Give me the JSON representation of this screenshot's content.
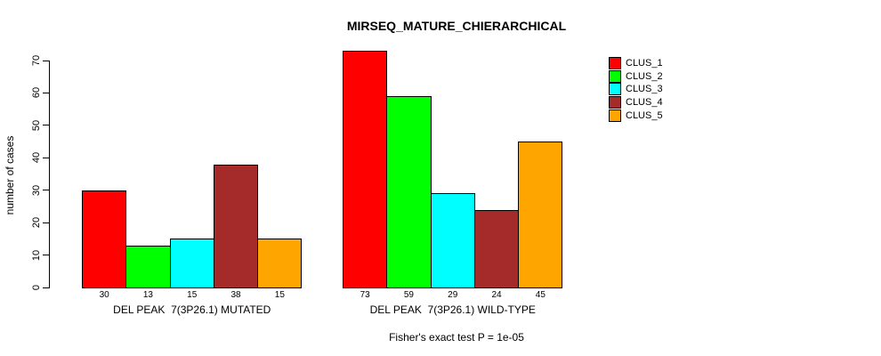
{
  "title": "MIRSEQ_MATURE_CHIERARCHICAL",
  "ylabel": "number of cases",
  "annotation": "Fisher's exact test P = 1e-05",
  "colors": {
    "background": "#ffffff",
    "axis": "#000000",
    "bar_border": "#000000"
  },
  "legend": {
    "position": "right",
    "items": [
      {
        "label": "CLUS_1",
        "color": "#FF0000"
      },
      {
        "label": "CLUS_2",
        "color": "#00FF00"
      },
      {
        "label": "CLUS_3",
        "color": "#00FFFF"
      },
      {
        "label": "CLUS_4",
        "color": "#A52A2A"
      },
      {
        "label": "CLUS_5",
        "color": "#FFA500"
      }
    ]
  },
  "chart_data": {
    "type": "bar",
    "title": "MIRSEQ_MATURE_CHIERARCHICAL",
    "xlabel": "",
    "ylabel": "number of cases",
    "ylim": [
      0,
      73
    ],
    "yticks": [
      0,
      10,
      20,
      30,
      40,
      50,
      60,
      70
    ],
    "grid": false,
    "legend_position": "right",
    "categories": [
      "DEL PEAK  7(3P26.1) MUTATED",
      "DEL PEAK  7(3P26.1) WILD-TYPE"
    ],
    "series": [
      {
        "name": "CLUS_1",
        "color": "#FF0000",
        "values": [
          30,
          73
        ]
      },
      {
        "name": "CLUS_2",
        "color": "#00FF00",
        "values": [
          13,
          59
        ]
      },
      {
        "name": "CLUS_3",
        "color": "#00FFFF",
        "values": [
          15,
          29
        ]
      },
      {
        "name": "CLUS_4",
        "color": "#A52A2A",
        "values": [
          38,
          24
        ]
      },
      {
        "name": "CLUS_5",
        "color": "#FFA500",
        "values": [
          15,
          45
        ]
      }
    ],
    "bar_value_labels": {
      "DEL PEAK  7(3P26.1) MUTATED": [
        30,
        13,
        15,
        38,
        15
      ],
      "DEL PEAK  7(3P26.1) WILD-TYPE": [
        73,
        59,
        29,
        24,
        45
      ]
    },
    "annotation": "Fisher's exact test P = 1e-05"
  }
}
